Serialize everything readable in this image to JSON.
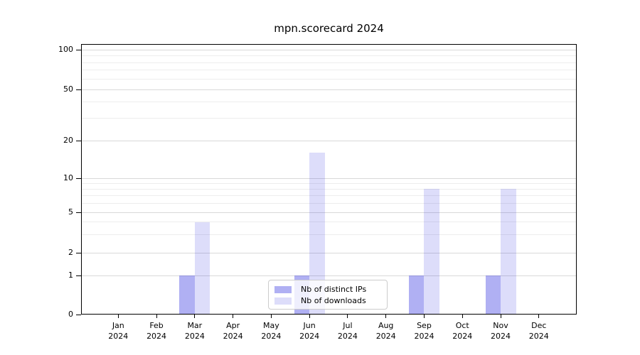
{
  "title": "mpn.scorecard 2024",
  "chart_data": {
    "type": "bar",
    "title": "mpn.scorecard 2024",
    "categories": [
      "Jan 2024",
      "Feb 2024",
      "Mar 2024",
      "Apr 2024",
      "May 2024",
      "Jun 2024",
      "Jul 2024",
      "Aug 2024",
      "Sep 2024",
      "Oct 2024",
      "Nov 2024",
      "Dec 2024"
    ],
    "series": [
      {
        "name": "Nb of distinct IPs",
        "color": "rgba(30,30,220,0.35)",
        "values": [
          0,
          0,
          1,
          0,
          0,
          1,
          0,
          0,
          1,
          0,
          1,
          0
        ]
      },
      {
        "name": "Nb of downloads",
        "color": "rgba(30,30,220,0.15)",
        "values": [
          0,
          0,
          4,
          0,
          0,
          16,
          0,
          0,
          8,
          0,
          8,
          0
        ]
      }
    ],
    "xlabel": "",
    "ylabel": "",
    "yscale": "symlog",
    "ylim": [
      0,
      120
    ],
    "yticks": [
      0,
      1,
      2,
      5,
      10,
      20,
      50,
      100
    ],
    "minor_yticks": [
      3,
      4,
      6,
      7,
      8,
      9,
      30,
      40,
      60,
      70,
      80,
      90
    ],
    "grid": true,
    "legend_position": "lower center"
  },
  "legend": {
    "items": [
      {
        "label": "Nb of distinct IPs",
        "color": "rgba(30,30,220,0.35)"
      },
      {
        "label": "Nb of downloads",
        "color": "rgba(30,30,220,0.15)"
      }
    ]
  }
}
